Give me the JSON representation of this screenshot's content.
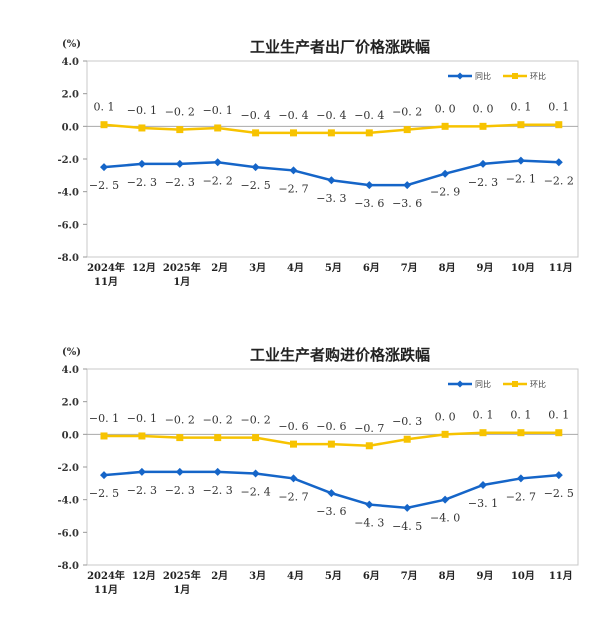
{
  "colors": {
    "yoy": "#1565c8",
    "mom": "#f7c300",
    "frame": "#c8c8c8"
  },
  "chart_data": [
    {
      "type": "line",
      "title": "工业生产者出厂价格涨跌幅",
      "unit_label": "(%)",
      "ylim": [
        -8.0,
        4.0
      ],
      "yticks": [
        "4.0",
        "2.0",
        "0.0",
        "-2.0",
        "-4.0",
        "-6.0",
        "-8.0"
      ],
      "categories": [
        [
          "2024年",
          "11月"
        ],
        [
          "12月"
        ],
        [
          "2025年",
          "1月"
        ],
        [
          "2月"
        ],
        [
          "3月"
        ],
        [
          "4月"
        ],
        [
          "5月"
        ],
        [
          "6月"
        ],
        [
          "7月"
        ],
        [
          "8月"
        ],
        [
          "9月"
        ],
        [
          "10月"
        ],
        [
          "11月"
        ]
      ],
      "legend": "top-right",
      "grid": false,
      "series": [
        {
          "name": "同比",
          "color": "#1565c8",
          "marker": "diamond",
          "values": [
            -2.5,
            -2.3,
            -2.3,
            -2.2,
            -2.5,
            -2.7,
            -3.3,
            -3.6,
            -3.6,
            -2.9,
            -2.3,
            -2.1,
            -2.2
          ]
        },
        {
          "name": "环比",
          "color": "#f7c300",
          "marker": "square",
          "values": [
            0.1,
            -0.1,
            -0.2,
            -0.1,
            -0.4,
            -0.4,
            -0.4,
            -0.4,
            -0.2,
            0.0,
            0.0,
            0.1,
            0.1
          ]
        }
      ]
    },
    {
      "type": "line",
      "title": "工业生产者购进价格涨跌幅",
      "unit_label": "(%)",
      "ylim": [
        -8.0,
        4.0
      ],
      "yticks": [
        "4.0",
        "2.0",
        "0.0",
        "-2.0",
        "-4.0",
        "-6.0",
        "-8.0"
      ],
      "categories": [
        [
          "2024年",
          "11月"
        ],
        [
          "12月"
        ],
        [
          "2025年",
          "1月"
        ],
        [
          "2月"
        ],
        [
          "3月"
        ],
        [
          "4月"
        ],
        [
          "5月"
        ],
        [
          "6月"
        ],
        [
          "7月"
        ],
        [
          "8月"
        ],
        [
          "9月"
        ],
        [
          "10月"
        ],
        [
          "11月"
        ]
      ],
      "legend": "top-right",
      "grid": false,
      "series": [
        {
          "name": "同比",
          "color": "#1565c8",
          "marker": "diamond",
          "values": [
            -2.5,
            -2.3,
            -2.3,
            -2.3,
            -2.4,
            -2.7,
            -3.6,
            -4.3,
            -4.5,
            -4.0,
            -3.1,
            -2.7,
            -2.5
          ]
        },
        {
          "name": "环比",
          "color": "#f7c300",
          "marker": "square",
          "values": [
            -0.1,
            -0.1,
            -0.2,
            -0.2,
            -0.2,
            -0.6,
            -0.6,
            -0.7,
            -0.3,
            0.0,
            0.1,
            0.1,
            0.1
          ]
        }
      ]
    }
  ]
}
